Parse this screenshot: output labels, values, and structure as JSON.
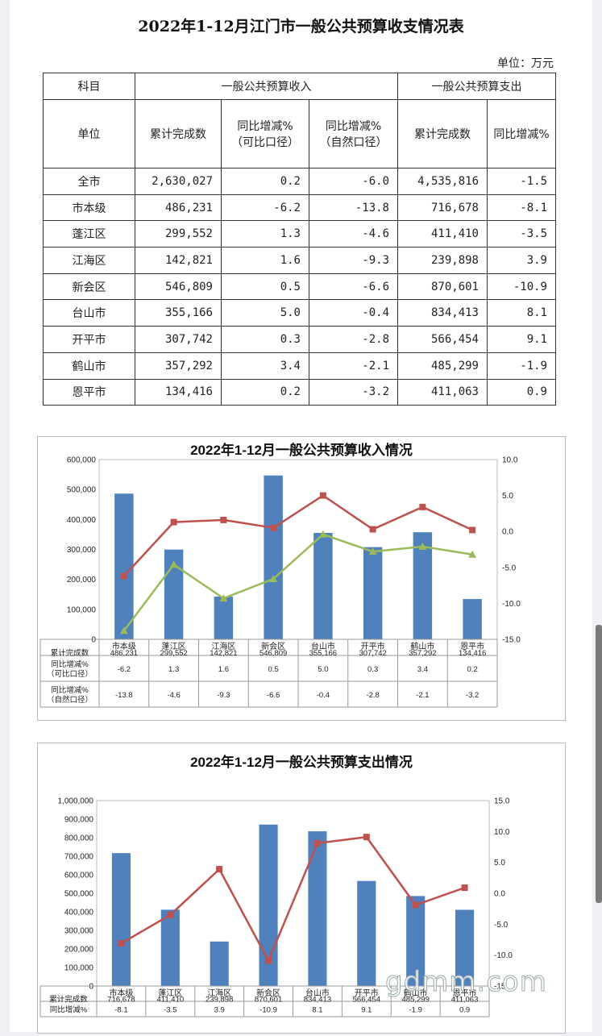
{
  "table": {
    "title": "2022年1-12月江门市一般公共预算收支情况表",
    "unit": "单位：万元",
    "h_subject": "科目",
    "h_income": "一般公共预算收入",
    "h_expense": "一般公共预算支出",
    "h_unit": "单位",
    "h_cum": "累计完成数",
    "h_yoy_comp_1": "同比增减%",
    "h_yoy_comp_2": "（可比口径）",
    "h_yoy_nat_1": "同比增减%",
    "h_yoy_nat_2": "（自然口径）",
    "h_cum2": "累计完成数",
    "h_yoy2": "同比增减%",
    "rows": [
      {
        "name": "全市",
        "inc": "2,630,027",
        "comp": "0.2",
        "nat": "-6.0",
        "exp": "4,535,816",
        "yoy": "-1.5"
      },
      {
        "name": "市本级",
        "inc": "486,231",
        "comp": "-6.2",
        "nat": "-13.8",
        "exp": "716,678",
        "yoy": "-8.1"
      },
      {
        "name": "蓬江区",
        "inc": "299,552",
        "comp": "1.3",
        "nat": "-4.6",
        "exp": "411,410",
        "yoy": "-3.5"
      },
      {
        "name": "江海区",
        "inc": "142,821",
        "comp": "1.6",
        "nat": "-9.3",
        "exp": "239,898",
        "yoy": "3.9"
      },
      {
        "name": "新会区",
        "inc": "546,809",
        "comp": "0.5",
        "nat": "-6.6",
        "exp": "870,601",
        "yoy": "-10.9"
      },
      {
        "name": "台山市",
        "inc": "355,166",
        "comp": "5.0",
        "nat": "-0.4",
        "exp": "834,413",
        "yoy": "8.1"
      },
      {
        "name": "开平市",
        "inc": "307,742",
        "comp": "0.3",
        "nat": "-2.8",
        "exp": "566,454",
        "yoy": "9.1"
      },
      {
        "name": "鹤山市",
        "inc": "357,292",
        "comp": "3.4",
        "nat": "-2.1",
        "exp": "485,299",
        "yoy": "-1.9"
      },
      {
        "name": "恩平市",
        "inc": "134,416",
        "comp": "0.2",
        "nat": "-3.2",
        "exp": "411,063",
        "yoy": "0.9"
      }
    ]
  },
  "watermark": "gdmm.com",
  "chart_data": [
    {
      "type": "bar",
      "title": "2022年1-12月一般公共预算收入情况",
      "categories": [
        "市本级",
        "蓬江区",
        "江海区",
        "新会区",
        "台山市",
        "开平市",
        "鹤山市",
        "恩平市"
      ],
      "y_left_ticks": [
        "600,000",
        "500,000",
        "400,000",
        "300,000",
        "200,000",
        "100,000",
        "0"
      ],
      "y_right_ticks": [
        "10.0",
        "5.0",
        "0.0",
        "-5.0",
        "-10.0",
        "-15.0"
      ],
      "ylim_left": [
        0,
        600000
      ],
      "ylim_right": [
        -15,
        10
      ],
      "bar_series": {
        "name": "累计完成数",
        "values": [
          486231,
          299552,
          142821,
          546809,
          355166,
          307742,
          357292,
          134416
        ],
        "labels": [
          "486,231",
          "299,552",
          "142,821",
          "546,809",
          "355,166",
          "307,742",
          "357,292",
          "134,416"
        ],
        "color": "#4f81bd"
      },
      "line_series": [
        {
          "name_1": "同比增减%",
          "name_2": "（可比口径）",
          "values": [
            -6.2,
            1.3,
            1.6,
            0.5,
            5.0,
            0.3,
            3.4,
            0.2
          ],
          "labels": [
            "-6.2",
            "1.3",
            "1.6",
            "0.5",
            "5.0",
            "0.3",
            "3.4",
            "0.2"
          ],
          "color": "#c0504d",
          "marker": "square"
        },
        {
          "name_1": "同比增减%",
          "name_2": "（自然口径）",
          "values": [
            -13.8,
            -4.6,
            -9.3,
            -6.6,
            -0.4,
            -2.8,
            -2.1,
            -3.2
          ],
          "labels": [
            "-13.8",
            "-4.6",
            "-9.3",
            "-6.6",
            "-0.4",
            "-2.8",
            "-2.1",
            "-3.2"
          ],
          "color": "#9bbb59",
          "marker": "triangle"
        }
      ]
    },
    {
      "type": "bar",
      "title": "2022年1-12月一般公共预算支出情况",
      "categories": [
        "市本级",
        "蓬江区",
        "江海区",
        "新会区",
        "台山市",
        "开平市",
        "鹤山市",
        "恩平市"
      ],
      "y_left_ticks": [
        "1,000,000",
        "900,000",
        "800,000",
        "700,000",
        "600,000",
        "500,000",
        "400,000",
        "300,000",
        "200,000",
        "100,000",
        "0"
      ],
      "y_right_ticks": [
        "15.0",
        "10.0",
        "5.0",
        "0.0",
        "-5.0",
        "-10.0",
        "-15"
      ],
      "ylim_left": [
        0,
        1000000
      ],
      "ylim_right": [
        -15,
        15
      ],
      "bar_series": {
        "name": "累计完成数",
        "values": [
          716678,
          411410,
          239898,
          870601,
          834413,
          566454,
          485299,
          411063
        ],
        "labels": [
          "716,678",
          "411,410",
          "239,898",
          "870,601",
          "834,413",
          "566,454",
          "485,299",
          "411,063"
        ],
        "color": "#4f81bd"
      },
      "line_series": [
        {
          "name_1": "同比增减%",
          "name_2": "",
          "values": [
            -8.1,
            -3.5,
            3.9,
            -10.9,
            8.1,
            9.1,
            -1.9,
            0.9
          ],
          "labels": [
            "-8.1",
            "-3.5",
            "3.9",
            "-10.9",
            "8.1",
            "9.1",
            "-1.9",
            "0.9"
          ],
          "color": "#c0504d",
          "marker": "square"
        }
      ]
    }
  ]
}
